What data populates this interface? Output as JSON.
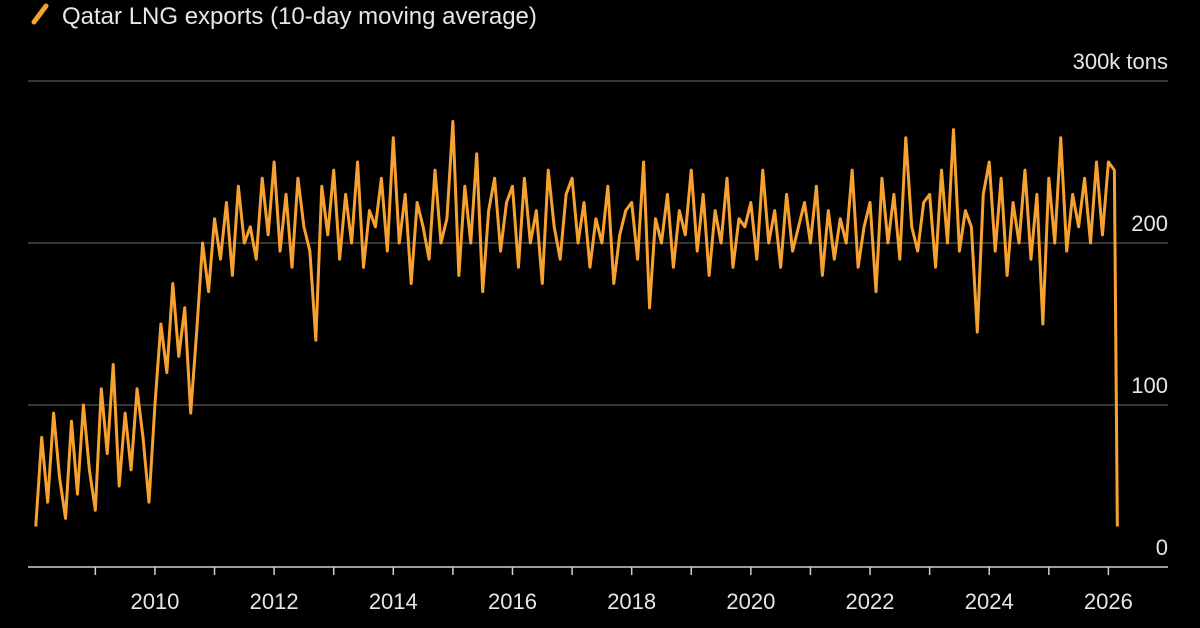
{
  "chart_data": {
    "type": "line",
    "series": [
      {
        "name": "Qatar LNG exports (10-day moving average)",
        "color": "#f7a230",
        "values": [
          25,
          80,
          40,
          95,
          55,
          30,
          90,
          45,
          100,
          60,
          35,
          110,
          70,
          125,
          50,
          95,
          60,
          110,
          80,
          40,
          100,
          150,
          120,
          175,
          130,
          160,
          95,
          145,
          200,
          170,
          215,
          190,
          225,
          180,
          235,
          200,
          210,
          190,
          240,
          205,
          250,
          195,
          230,
          185,
          240,
          210,
          195,
          140,
          235,
          205,
          245,
          190,
          230,
          200,
          250,
          185,
          220,
          210,
          240,
          195,
          265,
          200,
          230,
          175,
          225,
          210,
          190,
          245,
          200,
          215,
          275,
          180,
          235,
          200,
          255,
          170,
          220,
          240,
          195,
          225,
          235,
          185,
          240,
          200,
          220,
          175,
          245,
          210,
          190,
          230,
          240,
          200,
          225,
          185,
          215,
          200,
          235,
          175,
          205,
          220,
          225,
          190,
          250,
          160,
          215,
          200,
          230,
          185,
          220,
          205,
          245,
          195,
          230,
          180,
          220,
          200,
          240,
          185,
          215,
          210,
          225,
          190,
          245,
          200,
          220,
          185,
          230,
          195,
          210,
          225,
          200,
          235,
          180,
          220,
          190,
          215,
          200,
          245,
          185,
          210,
          225,
          170,
          240,
          200,
          230,
          190,
          265,
          210,
          195,
          225,
          230,
          185,
          245,
          200,
          270,
          195,
          220,
          210,
          145,
          230,
          250,
          195,
          240,
          180,
          225,
          200,
          245,
          190,
          230,
          150,
          240,
          200,
          265,
          195,
          230,
          210,
          240,
          200,
          250,
          205,
          250,
          245,
          25
        ]
      }
    ],
    "x": [
      2008.0,
      2008.1,
      2008.2,
      2008.3,
      2008.4,
      2008.5,
      2008.6,
      2008.7,
      2008.8,
      2008.9,
      2009.0,
      2009.1,
      2009.2,
      2009.3,
      2009.4,
      2009.5,
      2009.6,
      2009.7,
      2009.8,
      2009.9,
      2010.0,
      2010.1,
      2010.2,
      2010.3,
      2010.4,
      2010.5,
      2010.6,
      2010.7,
      2010.8,
      2010.9,
      2011.0,
      2011.1,
      2011.2,
      2011.3,
      2011.4,
      2011.5,
      2011.6,
      2011.7,
      2011.8,
      2011.9,
      2012.0,
      2012.1,
      2012.2,
      2012.3,
      2012.4,
      2012.5,
      2012.6,
      2012.7,
      2012.8,
      2012.9,
      2013.0,
      2013.1,
      2013.2,
      2013.3,
      2013.4,
      2013.5,
      2013.6,
      2013.7,
      2013.8,
      2013.9,
      2014.0,
      2014.1,
      2014.2,
      2014.3,
      2014.4,
      2014.5,
      2014.6,
      2014.7,
      2014.8,
      2014.9,
      2015.0,
      2015.1,
      2015.2,
      2015.3,
      2015.4,
      2015.5,
      2015.6,
      2015.7,
      2015.8,
      2015.9,
      2016.0,
      2016.1,
      2016.2,
      2016.3,
      2016.4,
      2016.5,
      2016.6,
      2016.7,
      2016.8,
      2016.9,
      2017.0,
      2017.1,
      2017.2,
      2017.3,
      2017.4,
      2017.5,
      2017.6,
      2017.7,
      2017.8,
      2017.9,
      2018.0,
      2018.1,
      2018.2,
      2018.3,
      2018.4,
      2018.5,
      2018.6,
      2018.7,
      2018.8,
      2018.9,
      2019.0,
      2019.1,
      2019.2,
      2019.3,
      2019.4,
      2019.5,
      2019.6,
      2019.7,
      2019.8,
      2019.9,
      2020.0,
      2020.1,
      2020.2,
      2020.3,
      2020.4,
      2020.5,
      2020.6,
      2020.7,
      2020.8,
      2020.9,
      2021.0,
      2021.1,
      2021.2,
      2021.3,
      2021.4,
      2021.5,
      2021.6,
      2021.7,
      2021.8,
      2021.9,
      2022.0,
      2022.1,
      2022.2,
      2022.3,
      2022.4,
      2022.5,
      2022.6,
      2022.7,
      2022.8,
      2022.9,
      2023.0,
      2023.1,
      2023.2,
      2023.3,
      2023.4,
      2023.5,
      2023.6,
      2023.7,
      2023.8,
      2023.9,
      2024.0,
      2024.1,
      2024.2,
      2024.3,
      2024.4,
      2024.5,
      2024.6,
      2024.7,
      2024.8,
      2024.9,
      2025.0,
      2025.1,
      2025.2,
      2025.3,
      2025.4,
      2025.5,
      2025.6,
      2025.7,
      2025.8,
      2025.9,
      2026.0,
      2026.1,
      2026.15
    ],
    "xlim": [
      2007.87,
      2027.0
    ],
    "xticks": [
      2010,
      2012,
      2014,
      2016,
      2018,
      2020,
      2022,
      2024,
      2026
    ],
    "xminorticks": [
      2009,
      2011,
      2013,
      2015,
      2017,
      2019,
      2021,
      2023,
      2025
    ],
    "ylim": [
      0,
      300
    ],
    "yticks": [
      0,
      100,
      200,
      {
        "value": 300,
        "label": "300k tons"
      }
    ],
    "grid": true
  }
}
